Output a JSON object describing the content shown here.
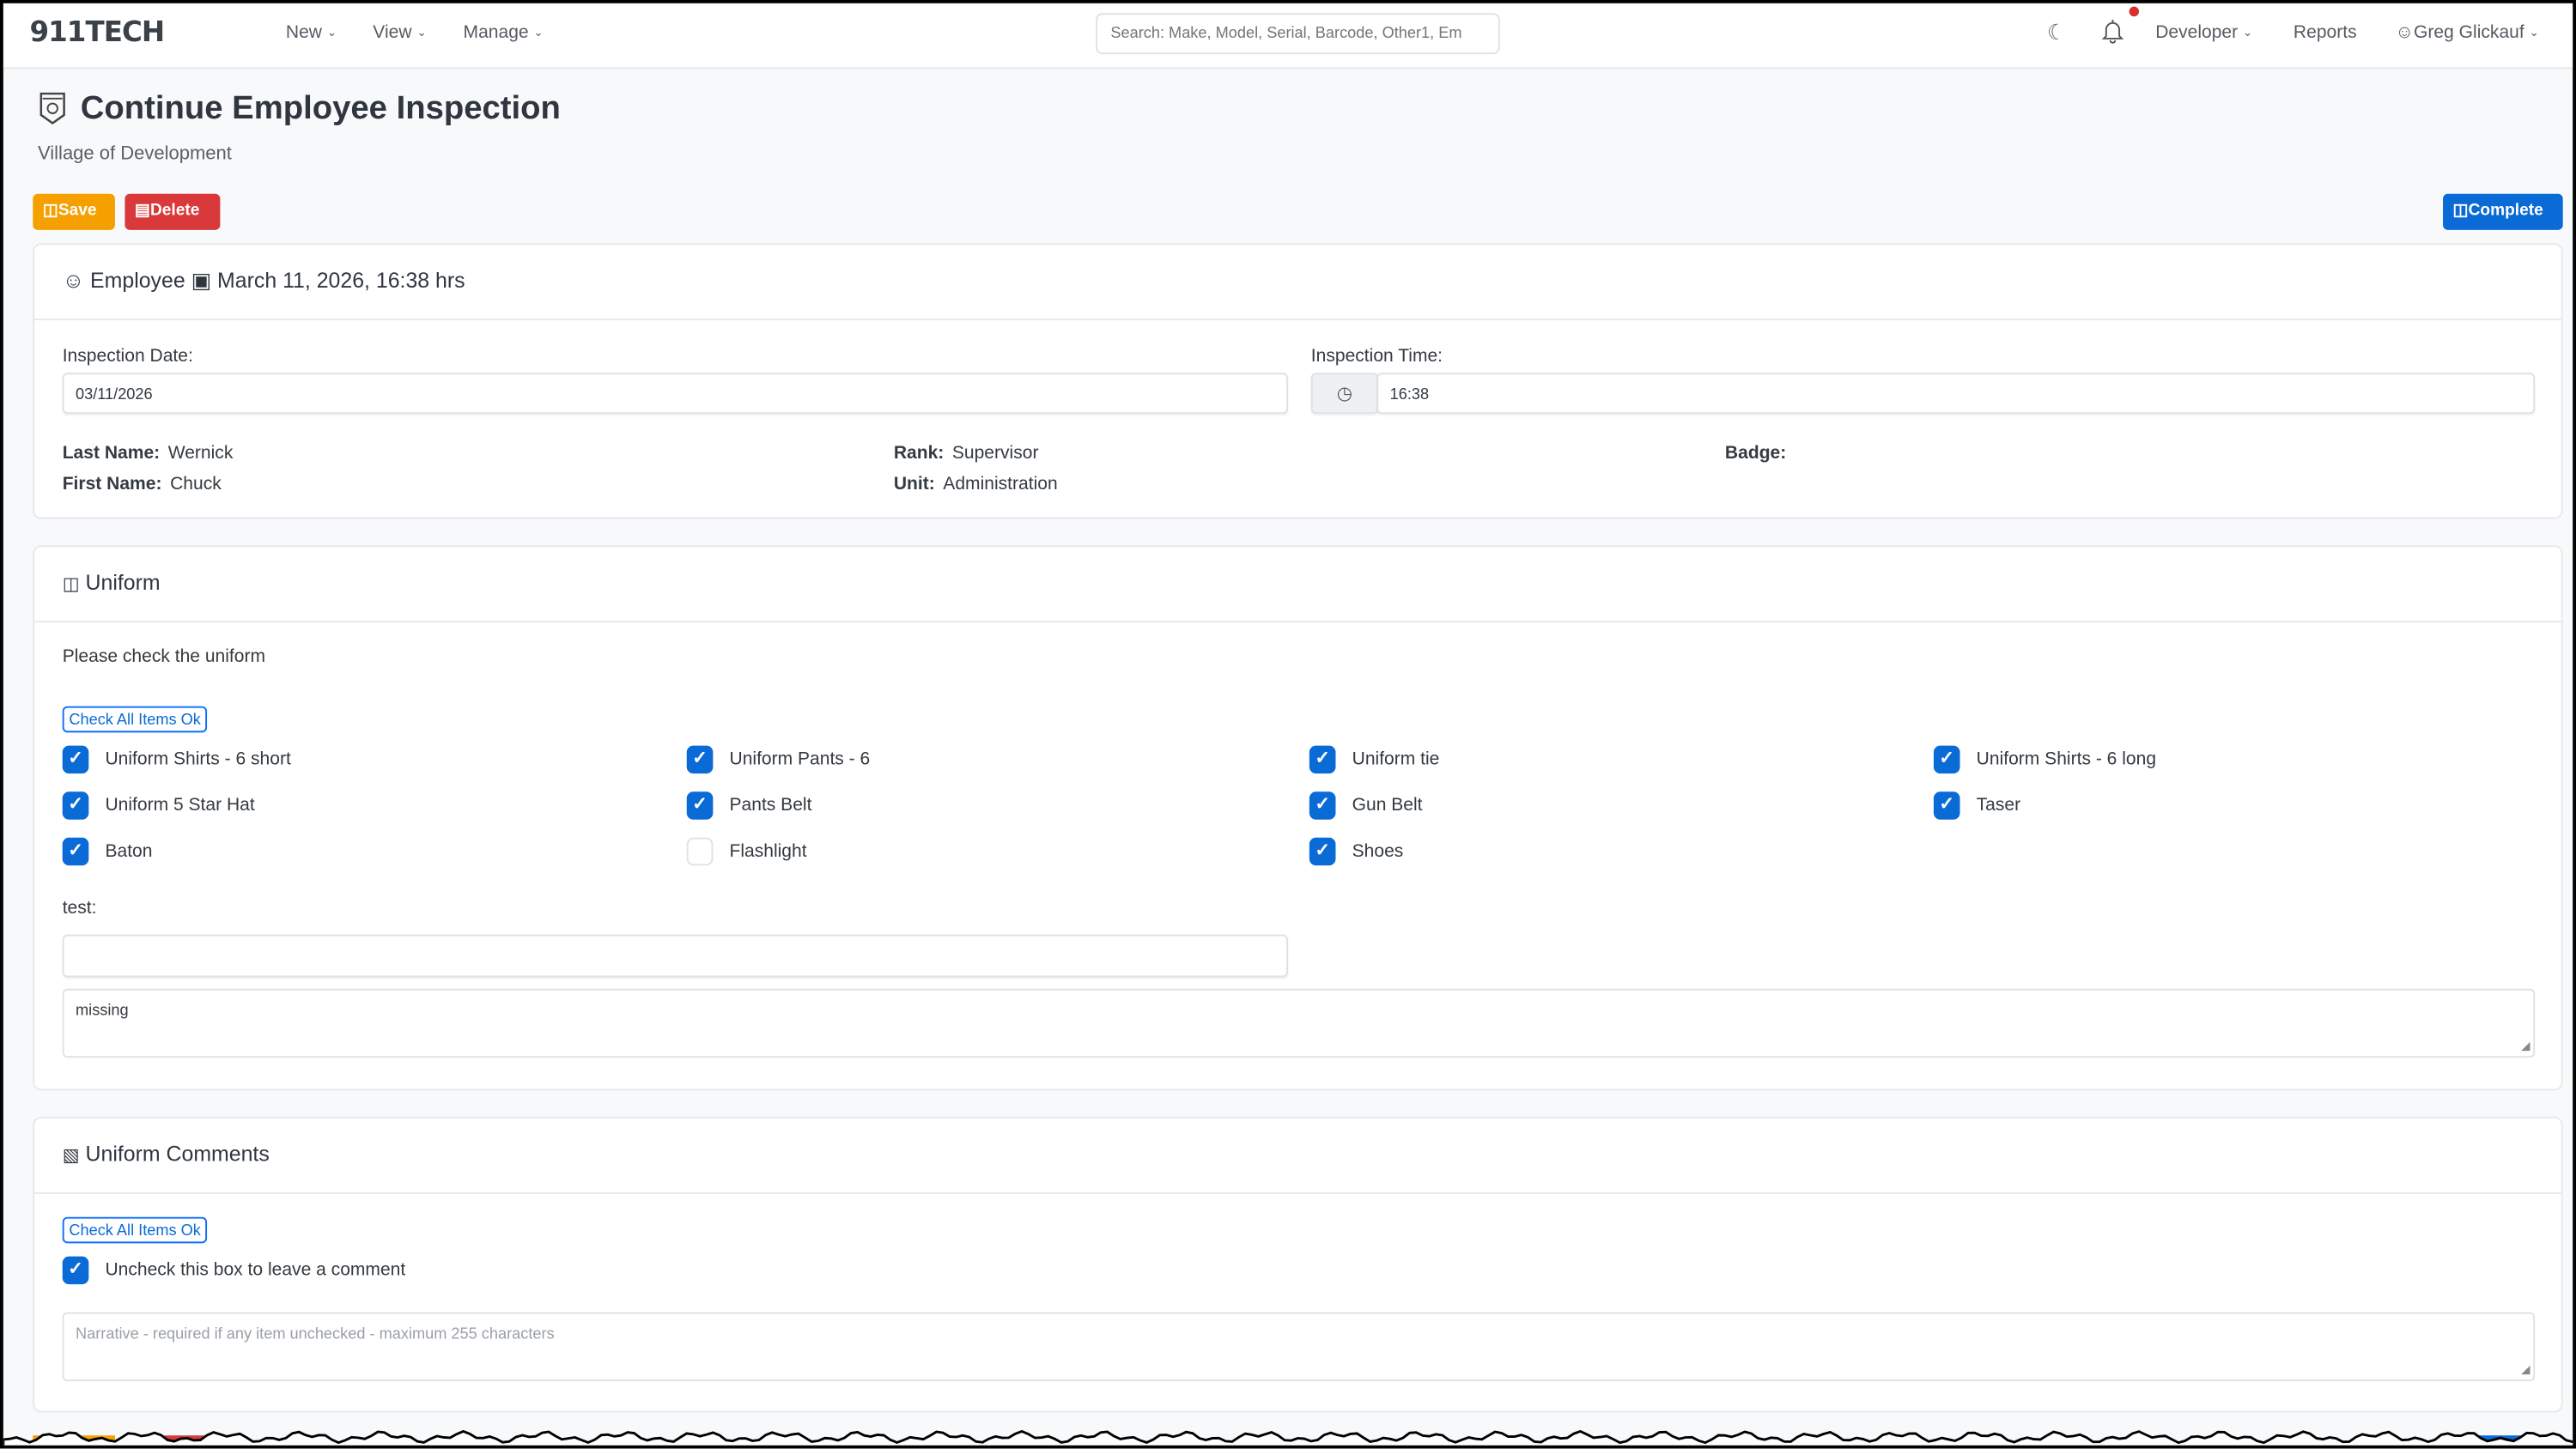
{
  "nav": {
    "logo": "911TECH",
    "menus": [
      "New",
      "View",
      "Manage"
    ],
    "search_placeholder": "Search: Make, Model, Serial, Barcode, Other1, Em",
    "developer": "Developer",
    "reports": "Reports",
    "user": "Greg Glickauf",
    "notification_dot_color": "#d9302f"
  },
  "page": {
    "title": "Continue Employee Inspection",
    "subtitle": "Village of Development",
    "save": "Save",
    "delete": "Delete",
    "complete": "Complete"
  },
  "colors": {
    "save": "#f5a000",
    "delete": "#d9393a",
    "primary": "#0b6bd6"
  },
  "employee_card": {
    "type": "Employee",
    "datetime": "March 11, 2026, 16:38 hrs",
    "date_label": "Inspection Date:",
    "date_value": "03/11/2026",
    "time_label": "Inspection Time:",
    "time_value": "16:38",
    "last_name_label": "Last Name:",
    "last_name": "Wernick",
    "first_name_label": "First Name:",
    "first_name": "Chuck",
    "rank_label": "Rank:",
    "rank": "Supervisor",
    "unit_label": "Unit:",
    "unit": "Administration",
    "badge_label": "Badge:"
  },
  "uniform": {
    "title": "Uniform",
    "instructions": "Please check the uniform",
    "check_all": "Check All Items Ok",
    "items": [
      {
        "label": "Uniform Shirts - 6 short",
        "checked": true
      },
      {
        "label": "Uniform Pants - 6",
        "checked": true
      },
      {
        "label": "Uniform tie",
        "checked": true
      },
      {
        "label": "Uniform Shirts - 6 long",
        "checked": true
      },
      {
        "label": "Uniform 5 Star Hat",
        "checked": true
      },
      {
        "label": "Pants Belt",
        "checked": true
      },
      {
        "label": "Gun Belt",
        "checked": true
      },
      {
        "label": "Taser",
        "checked": true
      },
      {
        "label": "Baton",
        "checked": true
      },
      {
        "label": "Flashlight",
        "checked": false
      },
      {
        "label": "Shoes",
        "checked": true
      }
    ],
    "test_label": "test:",
    "test_value": "",
    "comment_value": "missing"
  },
  "comments": {
    "title": "Uniform Comments",
    "check_all": "Check All Items Ok",
    "checkbox_label": "Uncheck this box to leave a comment",
    "checked": true,
    "narrative_placeholder": "Narrative - required if any item unchecked - maximum 255 characters"
  }
}
